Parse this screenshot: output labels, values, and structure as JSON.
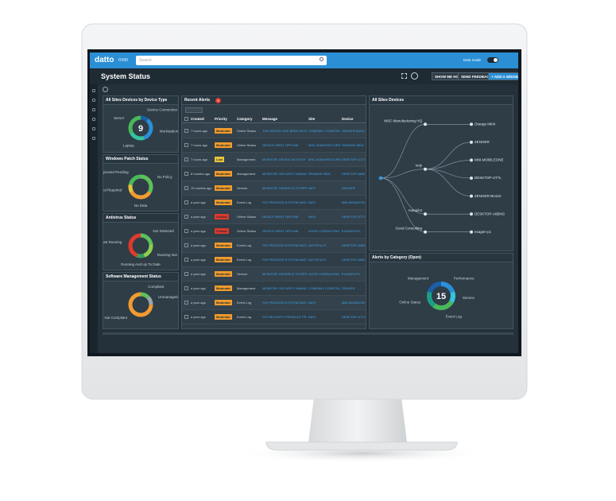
{
  "topbar": {
    "logo": "datto",
    "product": "RMM",
    "search": "Search",
    "dark_mode": "Dark mode"
  },
  "header": {
    "title": "System Status",
    "buttons": [
      "SHOW ME HOW",
      "SEND FEEDBACK",
      "+ ADD A WIDGET"
    ]
  },
  "widgets": [
    {
      "title": "All Sites Devices by Device Type",
      "center": 9,
      "segments": [
        {
          "label": "Device Connection",
          "color": "#1b5fa8",
          "value": 1
        },
        {
          "label": "Workstation",
          "color": "#2a8fd8",
          "value": 3
        },
        {
          "label": "Laptop",
          "color": "#35c4a0",
          "value": 2
        },
        {
          "label": "Server",
          "color": "#49b85a",
          "value": 3
        }
      ]
    },
    {
      "title": "Windows Patch Status",
      "segments": [
        {
          "label": "No Policy",
          "color": "#5cc15a",
          "value": 3
        },
        {
          "label": "No Data",
          "color": "#f29b30",
          "value": 3
        },
        {
          "label": "Reboot Required",
          "color": "#e8c53a",
          "value": 1
        },
        {
          "label": "Approved Pending",
          "color": "#49b85a",
          "value": 2
        }
      ]
    },
    {
      "title": "Antivirus Status",
      "segments": [
        {
          "label": "Not Detected",
          "color": "#5cc15a",
          "value": 2
        },
        {
          "label": "Running Not Up To Date",
          "color": "#8ccf4e",
          "value": 2
        },
        {
          "label": "Running And Up To Date",
          "color": "#3aa05a",
          "value": 1
        },
        {
          "label": "Not Running",
          "color": "#e0392b",
          "value": 4
        }
      ]
    },
    {
      "title": "Software Management Status",
      "segments": [
        {
          "label": "Compliant",
          "color": "#5cc15a",
          "value": 1
        },
        {
          "label": "Unmanaged",
          "color": "#9aa4ab",
          "value": 1
        },
        {
          "label": "Not Compliant",
          "color": "#f29b30",
          "value": 6
        }
      ]
    }
  ],
  "alerts": {
    "title": "Recent Alerts",
    "badge": "9",
    "columns": [
      "Created",
      "Priority",
      "Category",
      "Message",
      "Site",
      "Device"
    ],
    "priority_colors": {
      "Moderate": "#f09b2c",
      "Critical": "#e0392b",
      "Low": "#e8c53a"
    },
    "rows": [
      [
        "7 hours ago",
        "Moderate",
        "Online Status",
        "THE DEVICE HAS BEEN DETECTED",
        "COMPANY CONSTRUCTION",
        "ZENOER-BUILD"
      ],
      [
        "7 hours ago",
        "Moderate",
        "Online Status",
        "DEVICE WENT OFFLINE",
        "MSC MANUFACTURING HQ",
        "ORANGE-MKN"
      ],
      [
        "7 hours ago",
        "Low",
        "Management",
        "MONITOR: DEVICE ACTIVITY",
        "MSC MANUFACTURING HQ",
        "DESKTOP-UT7L"
      ],
      [
        "8 months ago",
        "Moderate",
        "Management",
        "MONITOR: SECURITY MANAGEMENT",
        "ORANGE MKN",
        "DESKTOP-A6BNG"
      ],
      [
        "10 months ago",
        "Moderate",
        "Service",
        "MONITOR: PAGEFILE STOPPED",
        "INDY",
        "ZENOER"
      ],
      [
        "a year ago",
        "Moderate",
        "Event Log",
        "PIO PROCESS SYSTEM WATCHDOG",
        "INDY",
        "MNI-MOBILEONE"
      ],
      [
        "a year ago",
        "Critical",
        "Online Status",
        "DEVICE WENT OFFLINE",
        "INDY",
        "DESKTOP-UT7L"
      ],
      [
        "a year ago",
        "Critical",
        "Online Status",
        "DEVICE WENT OFFLINE",
        "GOOD CONSULTING",
        "EXAGEN-PC"
      ],
      [
        "a year ago",
        "Moderate",
        "Event Log",
        "PIO PROCESS SYSTEM WATCHDOG",
        "AUTOPILOT",
        "DESKTOP-A6BNG"
      ],
      [
        "a year ago",
        "Moderate",
        "Event Log",
        "PIO PROCESS SYSTEM WATCHDOG",
        "AUTOPILOT",
        "DESKTOP-A6BNG"
      ],
      [
        "a year ago",
        "Moderate",
        "Service",
        "MONITOR: PAGEFILE STOPPED",
        "GOOD CONSULTING",
        "EXAGEN-PC"
      ],
      [
        "a year ago",
        "Moderate",
        "Management",
        "MONITOR: SECURITY MANAGEMENT",
        "COMPANY CONSTRUCTION",
        "ZENOER"
      ],
      [
        "a year ago",
        "Moderate",
        "Event Log",
        "PIO PROCESS SYSTEM WATCHDOG",
        "INDY",
        "MNI-MOBILEONE"
      ],
      [
        "a year ago",
        "Moderate",
        "Event Log",
        "PIO SECURITY PRODUCT PROBLEM",
        "INDY",
        "DESKTOP-UT7L"
      ]
    ]
  },
  "devices": {
    "title": "All Sites Devices",
    "sites": [
      {
        "label": "MSC Manufacturing HQ",
        "devices": [
          "Orange MKN"
        ]
      },
      {
        "label": "Indy",
        "devices": [
          "ZENOER",
          "MNI-MOBILEONE",
          "DESKTOP-UT7L",
          "ZENOER-BUILD"
        ]
      },
      {
        "label": "Autopilot",
        "devices": [
          "DESKTOP-A6BNG"
        ]
      },
      {
        "label": "Good Consulting",
        "devices": [
          "exagen-pc"
        ]
      }
    ]
  },
  "category": {
    "title": "Alerts by Category (Open)",
    "center": 15,
    "segments": [
      {
        "label": "Performance",
        "color": "#2a8fd8",
        "value": 3
      },
      {
        "label": "Service",
        "color": "#35c4e0",
        "value": 2
      },
      {
        "label": "Event Log",
        "color": "#49b85a",
        "value": 4
      },
      {
        "label": "Online Status",
        "color": "#1b9f8a",
        "value": 3
      },
      {
        "label": "Management",
        "color": "#1b5fa8",
        "value": 3
      }
    ]
  }
}
